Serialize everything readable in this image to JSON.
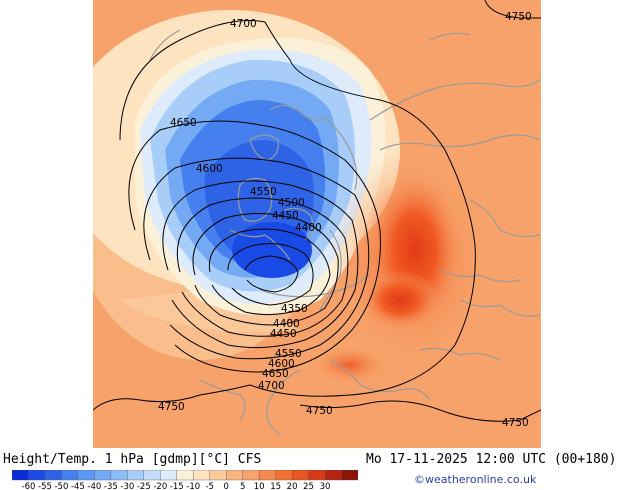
{
  "title": "Height/Temp. 1 hPa [gdmp][°C] CFS",
  "datetime": "Mo 17-11-2025 12:00 UTC (00+180)",
  "credit": "©weatheronline.co.uk",
  "colors": {
    "background_warm": "#f7a26a",
    "cold_core": "#2e63e6",
    "warm_core": "#e8401a",
    "contour": "#000000",
    "coast": "#9a9a9a"
  },
  "contour_labels": [
    {
      "name": "contour-label-4750-ne",
      "text": "4750"
    },
    {
      "name": "contour-label-4700-n",
      "text": "4700"
    },
    {
      "name": "contour-label-4650-w",
      "text": "4650"
    },
    {
      "name": "contour-label-4600-w",
      "text": "4600"
    },
    {
      "name": "contour-label-4550-c",
      "text": "4550"
    },
    {
      "name": "contour-label-4500-c",
      "text": "4500"
    },
    {
      "name": "contour-label-4450-c",
      "text": "4450"
    },
    {
      "name": "contour-label-4400-c",
      "text": "4400"
    },
    {
      "name": "contour-label-4350-s",
      "text": "4350"
    },
    {
      "name": "contour-label-4400-s",
      "text": "4400"
    },
    {
      "name": "contour-label-4450-s",
      "text": "4450"
    },
    {
      "name": "contour-label-4550-s",
      "text": "4550"
    },
    {
      "name": "contour-label-4600-s",
      "text": "4600"
    },
    {
      "name": "contour-label-4650-s",
      "text": "4650"
    },
    {
      "name": "contour-label-4700-s",
      "text": "4700"
    },
    {
      "name": "contour-label-4750-sw",
      "text": "4750"
    },
    {
      "name": "contour-label-4750-s",
      "text": "4750"
    },
    {
      "name": "contour-label-4750-se",
      "text": "4750"
    }
  ],
  "legend": {
    "colors": [
      "#0a2cd6",
      "#1a4ae6",
      "#2e63e6",
      "#4580ee",
      "#5a96f2",
      "#74aaf4",
      "#8dbcf6",
      "#a8cdf8",
      "#c3ddfa",
      "#ddebfb",
      "#fbf1d8",
      "#fde3c0",
      "#fbcb9c",
      "#f9b482",
      "#f7a26a",
      "#f58a4e",
      "#f07030",
      "#e85520",
      "#d63a16",
      "#b82210",
      "#8a1408"
    ],
    "labels": [
      "-60",
      "-55",
      "-50",
      "-45",
      "-40",
      "-35",
      "-30",
      "-25",
      "-20",
      "-15",
      "-10",
      "-5",
      "0",
      "5",
      "10",
      "15",
      "20",
      "25",
      "30"
    ]
  }
}
